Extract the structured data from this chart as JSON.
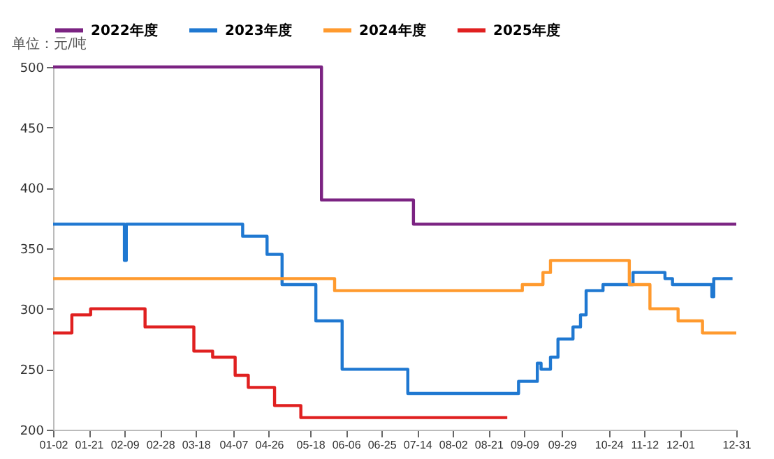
{
  "chart_data": {
    "type": "step",
    "ylabel": "单位：元/吨",
    "legend": "top",
    "grid": false,
    "xlim": [
      "--01-02",
      "--12-31"
    ],
    "xticks": [
      {
        "value": "--01-02",
        "label": "01-02"
      },
      {
        "value": "--01-21",
        "label": "01-21"
      },
      {
        "value": "--02-09",
        "label": "02-09"
      },
      {
        "value": "--02-28",
        "label": "02-28"
      },
      {
        "value": "--03-18",
        "label": "03-18"
      },
      {
        "value": "--04-07",
        "label": "04-07"
      },
      {
        "value": "--04-26",
        "label": "04-26"
      },
      {
        "value": "--05-18",
        "label": "05-18"
      },
      {
        "value": "--06-06",
        "label": "06-06"
      },
      {
        "value": "--06-25",
        "label": "06-25"
      },
      {
        "value": "--07-14",
        "label": "07-14"
      },
      {
        "value": "--08-02",
        "label": "08-02"
      },
      {
        "value": "--08-21",
        "label": "08-21"
      },
      {
        "value": "--09-09",
        "label": "09-09"
      },
      {
        "value": "--09-29",
        "label": "09-29"
      },
      {
        "value": "--10-24",
        "label": "10-24"
      },
      {
        "value": "--11-12",
        "label": "11-12"
      },
      {
        "value": "--12-01",
        "label": "12-01"
      },
      {
        "value": "--12-31",
        "label": "12-31"
      }
    ],
    "ylim": [
      200,
      500
    ],
    "yticks": [
      200,
      250,
      300,
      350,
      400,
      450,
      500
    ],
    "series": [
      {
        "name": "2022年度",
        "color": "#7b2382",
        "x": [
          "--01-02",
          "--05-24",
          "--07-12",
          "--12-31"
        ],
        "values": [
          500,
          390,
          370,
          370
        ]
      },
      {
        "name": "2023年度",
        "color": "#1f78d1",
        "x": [
          "--01-02",
          "--02-09",
          "--02-10",
          "--04-12",
          "--04-25",
          "--05-03",
          "--05-21",
          "--06-04",
          "--07-09",
          "--09-06",
          "--09-16",
          "--09-18",
          "--09-23",
          "--09-27",
          "--10-05",
          "--10-09",
          "--10-12",
          "--10-21",
          "--11-06",
          "--11-23",
          "--11-27",
          "--12-18",
          "--12-19",
          "--12-29"
        ],
        "values": [
          370,
          340,
          370,
          360,
          345,
          320,
          290,
          250,
          230,
          240,
          255,
          250,
          260,
          275,
          285,
          295,
          315,
          320,
          330,
          325,
          320,
          310,
          325,
          325
        ]
      },
      {
        "name": "2024年度",
        "color": "#ff9a2e",
        "x": [
          "--01-02",
          "--05-31",
          "--09-08",
          "--09-19",
          "--09-23",
          "--11-04",
          "--11-15",
          "--11-30",
          "--12-13",
          "--12-31"
        ],
        "values": [
          325,
          315,
          320,
          330,
          340,
          320,
          300,
          290,
          280,
          280
        ]
      },
      {
        "name": "2025年度",
        "color": "#e02020",
        "x": [
          "--01-02",
          "--01-12",
          "--01-22",
          "--02-20",
          "--03-17",
          "--03-27",
          "--04-08",
          "--04-15",
          "--04-29",
          "--05-13",
          "--08-31"
        ],
        "values": [
          280,
          295,
          300,
          285,
          265,
          260,
          245,
          235,
          220,
          210,
          210
        ]
      }
    ]
  }
}
